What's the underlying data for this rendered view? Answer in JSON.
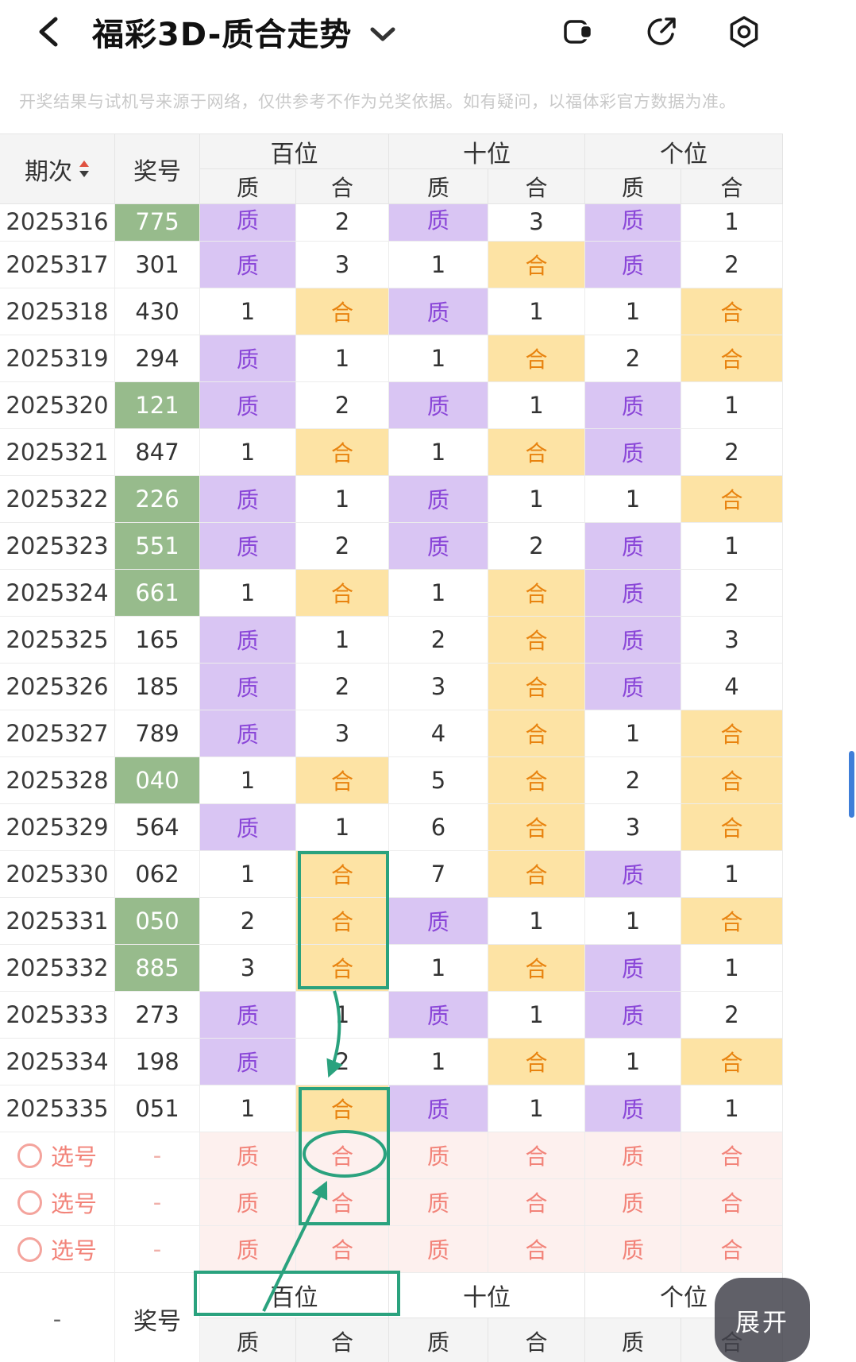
{
  "nav": {
    "title": "福彩3D-质合走势"
  },
  "disclaimer": "开奖结果与试机号来源于网络，仅供参考不作为兑奖依据。如有疑问，以福体彩官方数据为准。",
  "table": {
    "header": {
      "period": "期次",
      "number": "奖号",
      "groups": [
        "百位",
        "十位",
        "个位"
      ],
      "subs": [
        "质",
        "合",
        "质",
        "合",
        "质",
        "合"
      ]
    },
    "rows": [
      {
        "period": "2025316",
        "number": "775",
        "green": true,
        "clipped": true,
        "cells": [
          "质",
          "2",
          "质",
          "3",
          "质",
          "1"
        ]
      },
      {
        "period": "2025317",
        "number": "301",
        "green": false,
        "cells": [
          "质",
          "3",
          "1",
          "合",
          "质",
          "2"
        ]
      },
      {
        "period": "2025318",
        "number": "430",
        "green": false,
        "cells": [
          "1",
          "合",
          "质",
          "1",
          "1",
          "合"
        ]
      },
      {
        "period": "2025319",
        "number": "294",
        "green": false,
        "cells": [
          "质",
          "1",
          "1",
          "合",
          "2",
          "合"
        ]
      },
      {
        "period": "2025320",
        "number": "121",
        "green": true,
        "cells": [
          "质",
          "2",
          "质",
          "1",
          "质",
          "1"
        ]
      },
      {
        "period": "2025321",
        "number": "847",
        "green": false,
        "cells": [
          "1",
          "合",
          "1",
          "合",
          "质",
          "2"
        ]
      },
      {
        "period": "2025322",
        "number": "226",
        "green": true,
        "cells": [
          "质",
          "1",
          "质",
          "1",
          "1",
          "合"
        ]
      },
      {
        "period": "2025323",
        "number": "551",
        "green": true,
        "cells": [
          "质",
          "2",
          "质",
          "2",
          "质",
          "1"
        ]
      },
      {
        "period": "2025324",
        "number": "661",
        "green": true,
        "cells": [
          "1",
          "合",
          "1",
          "合",
          "质",
          "2"
        ]
      },
      {
        "period": "2025325",
        "number": "165",
        "green": false,
        "cells": [
          "质",
          "1",
          "2",
          "合",
          "质",
          "3"
        ]
      },
      {
        "period": "2025326",
        "number": "185",
        "green": false,
        "cells": [
          "质",
          "2",
          "3",
          "合",
          "质",
          "4"
        ]
      },
      {
        "period": "2025327",
        "number": "789",
        "green": false,
        "cells": [
          "质",
          "3",
          "4",
          "合",
          "1",
          "合"
        ]
      },
      {
        "period": "2025328",
        "number": "040",
        "green": true,
        "cells": [
          "1",
          "合",
          "5",
          "合",
          "2",
          "合"
        ]
      },
      {
        "period": "2025329",
        "number": "564",
        "green": false,
        "cells": [
          "质",
          "1",
          "6",
          "合",
          "3",
          "合"
        ]
      },
      {
        "period": "2025330",
        "number": "062",
        "green": false,
        "cells": [
          "1",
          "合",
          "7",
          "合",
          "质",
          "1"
        ]
      },
      {
        "period": "2025331",
        "number": "050",
        "green": true,
        "cells": [
          "2",
          "合",
          "质",
          "1",
          "1",
          "合"
        ]
      },
      {
        "period": "2025332",
        "number": "885",
        "green": true,
        "cells": [
          "3",
          "合",
          "1",
          "合",
          "质",
          "1"
        ]
      },
      {
        "period": "2025333",
        "number": "273",
        "green": false,
        "cells": [
          "质",
          "1",
          "质",
          "1",
          "质",
          "2"
        ]
      },
      {
        "period": "2025334",
        "number": "198",
        "green": false,
        "cells": [
          "质",
          "2",
          "1",
          "合",
          "1",
          "合"
        ]
      },
      {
        "period": "2025335",
        "number": "051",
        "green": false,
        "cells": [
          "1",
          "合",
          "质",
          "1",
          "质",
          "1"
        ]
      }
    ],
    "select_rows": [
      {
        "label": "选号",
        "number": "-",
        "cells": [
          "质",
          "合",
          "质",
          "合",
          "质",
          "合"
        ]
      },
      {
        "label": "选号",
        "number": "-",
        "cells": [
          "质",
          "合",
          "质",
          "合",
          "质",
          "合"
        ]
      },
      {
        "label": "选号",
        "number": "-",
        "cells": [
          "质",
          "合",
          "质",
          "合",
          "质",
          "合"
        ]
      }
    ],
    "footer": {
      "period": "-",
      "number": "奖号",
      "groups": [
        "百位",
        "十位",
        "个位"
      ],
      "subs": [
        "质",
        "合",
        "质",
        "合",
        "质",
        "合"
      ]
    }
  },
  "expand_button": "展开",
  "colors": {
    "zhi_bg": "#d9c5f3",
    "zhi_text": "#8a46d8",
    "he_bg": "#fde3a4",
    "he_text": "#e8830f",
    "winning_green_bg": "#97bb8c",
    "select_text": "#f28379",
    "select_bg": "#fdf0ee",
    "annotation_green": "#2aa27e",
    "scrollbar_blue": "#3f7ed8"
  }
}
